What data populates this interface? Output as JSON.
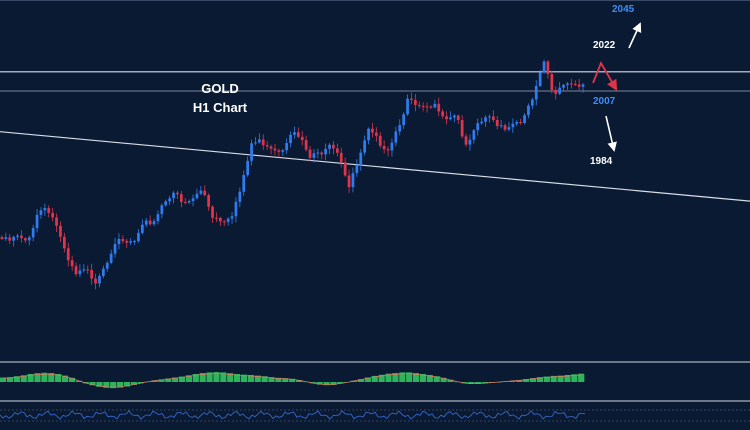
{
  "chart_data": {
    "type": "candlestick",
    "title": "GOLD",
    "subtitle": "H1 Chart",
    "xlabel": "",
    "ylabel": "",
    "ylim": [
      1910,
      2052
    ],
    "grid": false,
    "colors": {
      "background": "#0b1a33",
      "bull": "#2f7cf0",
      "bear": "#e0344a",
      "level_line": "#d8dde6",
      "projection_up": "#ffffff",
      "projection_down": "#ffffff",
      "projection_red": "#e0344a",
      "histogram": "#2db35a",
      "oscillator": "#3a6fd8"
    },
    "levels": [
      {
        "label": "2045",
        "value": 2045,
        "color": "#3d8ef5"
      },
      {
        "label": "2022",
        "value": 2022,
        "color": "#ffffff"
      },
      {
        "label": "2007",
        "value": 2007,
        "color": "#3d8ef5"
      },
      {
        "label": "1984",
        "value": 1984,
        "color": "#ffffff"
      }
    ],
    "horizontal_lines": [
      2022,
      2014
    ],
    "trendline": {
      "start": 1997,
      "end": 1968
    },
    "price_path": [
      1953,
      1951,
      1953,
      1950,
      1963,
      1966,
      1958,
      1944,
      1937,
      1939,
      1935,
      1942,
      1951,
      1950,
      1951,
      1958,
      1960,
      1968,
      1972,
      1966,
      1969,
      1973,
      1962,
      1960,
      1963,
      1974,
      1992,
      1993,
      1991,
      1989,
      1997,
      1994,
      1986,
      1988,
      1993,
      1988,
      1974,
      1985,
      1997,
      1993,
      1990,
      1999,
      2010,
      2007,
      2006,
      2008,
      2003,
      2005,
      1990,
      1998,
      2003,
      2001,
      1999,
      2001,
      2003,
      2012,
      2026,
      2012,
      2018,
      2017,
      2016
    ],
    "histogram": [
      0.28,
      0.3,
      0.36,
      0.42,
      0.5,
      0.55,
      0.58,
      0.56,
      0.5,
      0.4,
      0.26,
      0.08,
      -0.08,
      -0.2,
      -0.3,
      -0.36,
      -0.38,
      -0.35,
      -0.28,
      -0.18,
      -0.08,
      0.02,
      0.1,
      0.16,
      0.22,
      0.28,
      0.34,
      0.42,
      0.5,
      0.56,
      0.6,
      0.62,
      0.6,
      0.55,
      0.5,
      0.46,
      0.44,
      0.4,
      0.36,
      0.3,
      0.26,
      0.24,
      0.2,
      0.12,
      0.02,
      -0.08,
      -0.16,
      -0.2,
      -0.18,
      -0.1,
      -0.02,
      0.08,
      0.18,
      0.28,
      0.38,
      0.45,
      0.52,
      0.56,
      0.6,
      0.6,
      0.56,
      0.5,
      0.44,
      0.36,
      0.26,
      0.14,
      0.02,
      -0.08,
      -0.12,
      -0.12,
      -0.08,
      -0.04,
      0.0,
      0.04,
      0.08,
      0.12,
      0.18,
      0.24,
      0.3,
      0.34,
      0.38,
      0.4,
      0.44,
      0.48,
      0.52
    ]
  }
}
